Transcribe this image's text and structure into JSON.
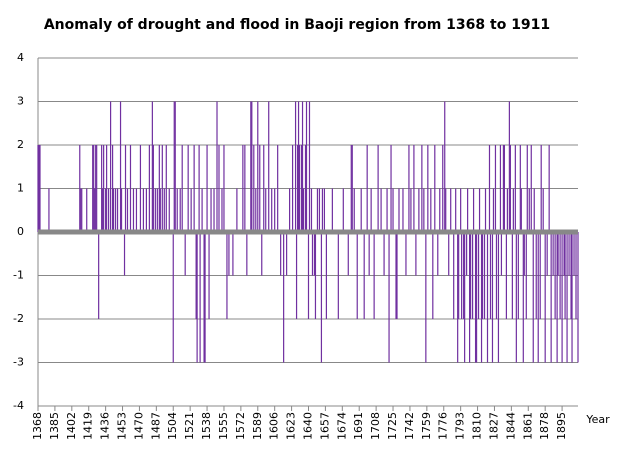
{
  "chart_data": {
    "type": "bar",
    "title": "Anomaly of drought and flood in Baoji region from 1368 to 1911",
    "x_label": "Year",
    "color": "#7030a0",
    "grid": true,
    "xlim": [
      1368,
      1911
    ],
    "xticks": [
      1368,
      1385,
      1402,
      1419,
      1436,
      1453,
      1470,
      1487,
      1504,
      1521,
      1538,
      1555,
      1572,
      1589,
      1606,
      1623,
      1640,
      1657,
      1674,
      1691,
      1708,
      1725,
      1742,
      1759,
      1776,
      1793,
      1810,
      1827,
      1844,
      1861,
      1878,
      1895
    ],
    "ylim": [
      -4,
      4
    ],
    "yticks": [
      -4,
      -3,
      -2,
      -1,
      0,
      1,
      2,
      3,
      4
    ],
    "x": [
      1368,
      1369,
      1370,
      1379,
      1410,
      1411,
      1412,
      1417,
      1423,
      1424,
      1425,
      1426,
      1427,
      1429,
      1432,
      1433,
      1434,
      1436,
      1437,
      1439,
      1441,
      1443,
      1444,
      1446,
      1448,
      1451,
      1452,
      1455,
      1456,
      1458,
      1461,
      1464,
      1467,
      1471,
      1474,
      1477,
      1480,
      1483,
      1484,
      1486,
      1488,
      1490,
      1491,
      1493,
      1495,
      1497,
      1500,
      1504,
      1505,
      1506,
      1508,
      1511,
      1513,
      1516,
      1519,
      1522,
      1525,
      1527,
      1528,
      1530,
      1531,
      1533,
      1535,
      1536,
      1538,
      1540,
      1542,
      1545,
      1548,
      1550,
      1553,
      1555,
      1558,
      1560,
      1564,
      1568,
      1574,
      1576,
      1578,
      1582,
      1583,
      1585,
      1587,
      1589,
      1591,
      1593,
      1595,
      1597,
      1600,
      1603,
      1606,
      1609,
      1612,
      1615,
      1618,
      1621,
      1624,
      1627,
      1628,
      1629,
      1630,
      1631,
      1633,
      1634,
      1635,
      1637,
      1638,
      1640,
      1641,
      1643,
      1644,
      1646,
      1647,
      1649,
      1651,
      1653,
      1654,
      1656,
      1658,
      1664,
      1670,
      1675,
      1680,
      1683,
      1684,
      1686,
      1689,
      1693,
      1696,
      1699,
      1701,
      1703,
      1706,
      1710,
      1713,
      1716,
      1719,
      1721,
      1723,
      1725,
      1728,
      1729,
      1731,
      1735,
      1738,
      1741,
      1743,
      1746,
      1748,
      1751,
      1754,
      1756,
      1758,
      1760,
      1763,
      1765,
      1767,
      1770,
      1772,
      1775,
      1777,
      1778,
      1781,
      1783,
      1786,
      1788,
      1790,
      1791,
      1793,
      1794,
      1796,
      1797,
      1799,
      1800,
      1802,
      1803,
      1805,
      1806,
      1808,
      1809,
      1811,
      1812,
      1814,
      1815,
      1817,
      1818,
      1820,
      1822,
      1823,
      1825,
      1826,
      1828,
      1829,
      1831,
      1833,
      1834,
      1836,
      1837,
      1839,
      1840,
      1842,
      1843,
      1845,
      1846,
      1848,
      1849,
      1851,
      1853,
      1854,
      1856,
      1857,
      1859,
      1860,
      1862,
      1864,
      1866,
      1867,
      1869,
      1871,
      1873,
      1874,
      1876,
      1878,
      1880,
      1882,
      1884,
      1886,
      1888,
      1890,
      1891,
      1893,
      1895,
      1897,
      1898,
      1900,
      1902,
      1904,
      1905,
      1907,
      1909,
      1911
    ],
    "values": [
      2,
      2,
      2,
      1,
      2,
      1,
      1,
      1,
      2,
      2,
      1,
      2,
      2,
      -2,
      2,
      1,
      2,
      1,
      2,
      1,
      3,
      2,
      1,
      1,
      1,
      3,
      1,
      -1,
      2,
      1,
      2,
      1,
      1,
      2,
      1,
      1,
      2,
      3,
      2,
      1,
      1,
      2,
      1,
      2,
      1,
      2,
      1,
      -3,
      3,
      3,
      1,
      1,
      2,
      -1,
      2,
      1,
      2,
      -2,
      -3,
      2,
      -3,
      1,
      -3,
      -3,
      2,
      -2,
      1,
      1,
      3,
      2,
      1,
      2,
      -2,
      -1,
      -1,
      1,
      2,
      2,
      -1,
      3,
      3,
      2,
      1,
      3,
      2,
      -1,
      2,
      1,
      3,
      1,
      1,
      2,
      -1,
      -3,
      -1,
      1,
      2,
      3,
      -2,
      2,
      3,
      2,
      2,
      3,
      1,
      2,
      3,
      -2,
      3,
      1,
      -1,
      -1,
      -2,
      1,
      1,
      -3,
      1,
      1,
      -2,
      1,
      -2,
      1,
      -1,
      2,
      2,
      1,
      -2,
      1,
      -2,
      2,
      -1,
      1,
      -2,
      2,
      1,
      -1,
      1,
      -3,
      2,
      1,
      -2,
      -2,
      1,
      1,
      -1,
      2,
      1,
      2,
      -1,
      1,
      2,
      1,
      -3,
      2,
      1,
      -2,
      2,
      -1,
      1,
      2,
      3,
      1,
      -1,
      1,
      -2,
      1,
      -3,
      -2,
      1,
      -2,
      -2,
      -3,
      -1,
      1,
      -3,
      -2,
      -2,
      1,
      -3,
      -3,
      -2,
      1,
      -3,
      -2,
      -2,
      1,
      -3,
      2,
      -2,
      -3,
      1,
      2,
      -2,
      -3,
      2,
      -1,
      2,
      2,
      -2,
      1,
      3,
      2,
      -2,
      1,
      2,
      -3,
      -2,
      2,
      1,
      -3,
      -1,
      -2,
      2,
      1,
      2,
      -3,
      1,
      -2,
      -3,
      -2,
      2,
      1,
      -3,
      -1,
      2,
      -3,
      -1,
      -2,
      -3,
      -1,
      -2,
      -3,
      -1,
      -2,
      -3,
      -1,
      -2,
      -3,
      -1,
      -2,
      -3
    ]
  }
}
